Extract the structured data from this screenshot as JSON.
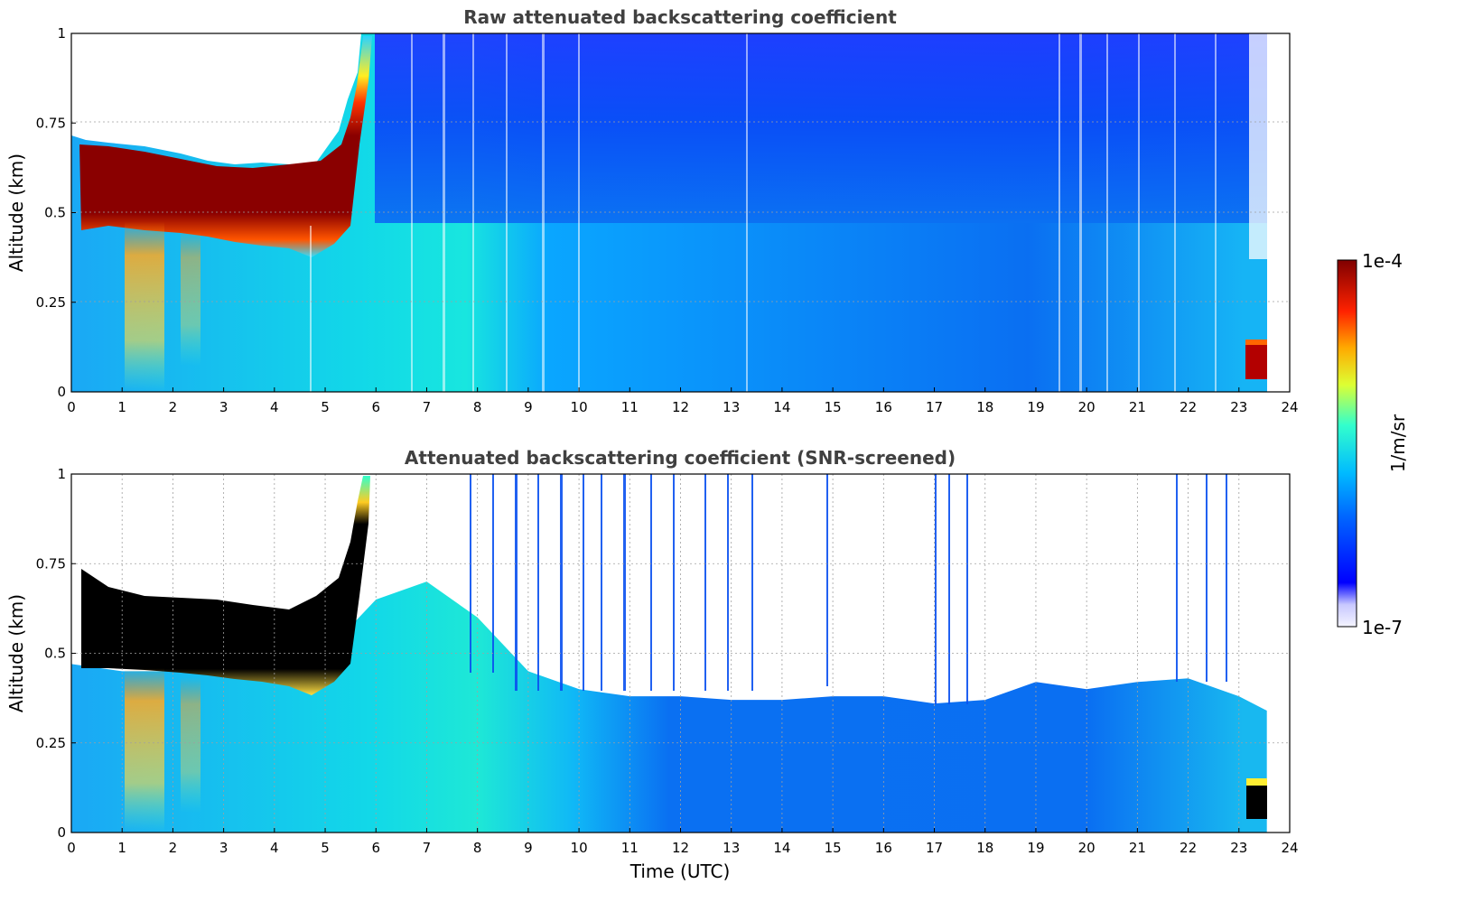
{
  "figure": {
    "xlabel": "Time (UTC)"
  },
  "colorbar": {
    "max_label": "1e-4",
    "min_label": "1e-7",
    "unit_label": "1/m/sr"
  },
  "chart_data": [
    {
      "type": "heatmap",
      "title": "Raw attenuated backscattering coefficient",
      "xlabel": "",
      "ylabel": "Altitude (km)",
      "xlim": [
        0,
        24
      ],
      "ylim": [
        0,
        1
      ],
      "x_ticks": [
        "0",
        "1",
        "2",
        "3",
        "4",
        "5",
        "6",
        "7",
        "8",
        "9",
        "10",
        "11",
        "12",
        "13",
        "14",
        "15",
        "16",
        "17",
        "18",
        "19",
        "20",
        "21",
        "22",
        "23",
        "24"
      ],
      "y_ticks": [
        "0",
        "0.25",
        "0.5",
        "0.75",
        "1"
      ],
      "grid": true,
      "data_extent_hours": [
        0,
        23.55
      ],
      "features": [
        {
          "name": "low cloud layer",
          "start_h": 0.2,
          "end_h": 5.5,
          "bottom_km": 0.45,
          "top_km": 0.6
        },
        {
          "name": "rising layer",
          "start_h": 5.3,
          "end_h": 5.9,
          "bottom_km": 0.55,
          "top_km": 1.0
        },
        {
          "name": "late low cloud",
          "start_h": 23.15,
          "end_h": 23.55,
          "bottom_km": 0.04,
          "top_km": 0.12
        }
      ]
    },
    {
      "type": "heatmap",
      "title": "Attenuated backscattering coefficient (SNR-screened)",
      "xlabel": "Time (UTC)",
      "ylabel": "Altitude (km)",
      "xlim": [
        0,
        24
      ],
      "ylim": [
        0,
        1
      ],
      "x_ticks": [
        "0",
        "1",
        "2",
        "3",
        "4",
        "5",
        "6",
        "7",
        "8",
        "9",
        "10",
        "11",
        "12",
        "13",
        "14",
        "15",
        "16",
        "17",
        "18",
        "19",
        "20",
        "21",
        "22",
        "23",
        "24"
      ],
      "y_ticks": [
        "0",
        "0.25",
        "0.5",
        "0.75",
        "1"
      ],
      "grid": true,
      "data_extent_hours": [
        0,
        23.55
      ],
      "screen_top_km": [
        [
          0,
          0.47
        ],
        [
          1,
          0.45
        ],
        [
          2,
          0.45
        ],
        [
          3,
          0.45
        ],
        [
          4,
          0.46
        ],
        [
          5,
          0.5
        ],
        [
          6,
          0.65
        ],
        [
          7,
          0.7
        ],
        [
          8,
          0.6
        ],
        [
          9,
          0.45
        ],
        [
          10,
          0.4
        ],
        [
          11,
          0.38
        ],
        [
          12,
          0.38
        ],
        [
          13,
          0.37
        ],
        [
          14,
          0.37
        ],
        [
          15,
          0.38
        ],
        [
          16,
          0.38
        ],
        [
          17,
          0.36
        ],
        [
          18,
          0.37
        ],
        [
          19,
          0.42
        ],
        [
          20,
          0.4
        ],
        [
          21,
          0.42
        ],
        [
          22,
          0.43
        ],
        [
          23,
          0.38
        ],
        [
          23.55,
          0.34
        ]
      ]
    }
  ]
}
